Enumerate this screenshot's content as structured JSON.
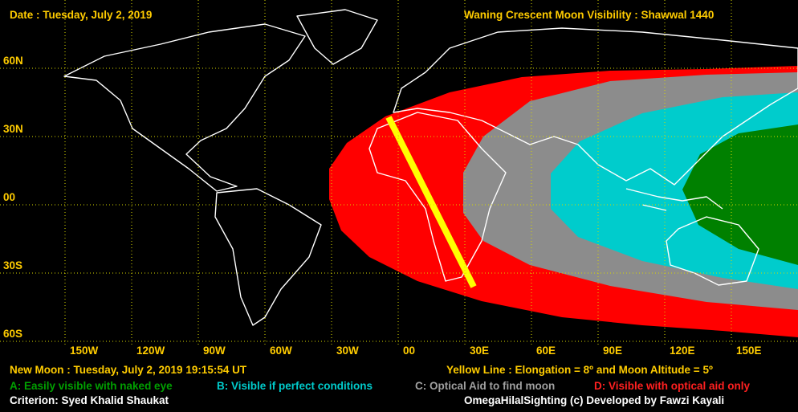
{
  "header": {
    "date": "Date : Tuesday, July 2, 2019",
    "title": "Waning Crescent Moon Visibility : Shawwal 1440"
  },
  "map": {
    "latitude_labels": [
      "60N",
      "30N",
      "00",
      "30S",
      "60S"
    ],
    "longitude_labels": [
      "150W",
      "120W",
      "90W",
      "60W",
      "30W",
      "00",
      "30E",
      "60E",
      "90E",
      "120E",
      "150E"
    ]
  },
  "footer": {
    "new_moon": "New Moon : Tuesday, July 2, 2019  19:15:54  UT",
    "yellow_line": "Yellow Line : Elongation = 8º  and Moon Altitude = 5º",
    "legend": [
      "A: Easily visible with naked eye",
      "B: Visible if perfect conditions",
      "C: Optical Aid to find moon",
      "D: Visible with optical aid only"
    ],
    "criterion": "Criterion: Syed Khalid Shaukat",
    "credit": "OmegaHilalSighting  (c)  Developed by Fawzi Kayali"
  }
}
